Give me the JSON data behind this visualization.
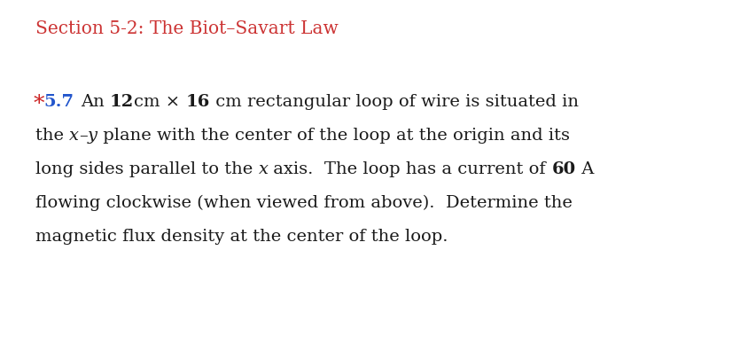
{
  "bg": "#ffffff",
  "section_title": "Section 5-2: The Biot–Savart Law",
  "section_color": "#cc3333",
  "section_fs": 14.5,
  "star_color": "#cc2222",
  "num_color": "#2255cc",
  "body_color": "#1a1a1a",
  "body_fs": 14.0,
  "line1_segs": [
    [
      "An ",
      false,
      false
    ],
    [
      "12",
      true,
      false
    ],
    [
      "cm × ",
      false,
      false
    ],
    [
      "16",
      true,
      false
    ],
    [
      " cm rectangular loop of wire is situated in",
      false,
      false
    ]
  ],
  "line2_segs": [
    [
      "the ",
      false,
      false
    ],
    [
      "x",
      false,
      true
    ],
    [
      "–",
      false,
      false
    ],
    [
      "y",
      false,
      true
    ],
    [
      " plane with the center of the loop at the origin and its",
      false,
      false
    ]
  ],
  "line3_segs": [
    [
      "long sides parallel to the ",
      false,
      false
    ],
    [
      "x",
      false,
      true
    ],
    [
      " axis.  The loop has a current of ",
      false,
      false
    ],
    [
      "60",
      true,
      false
    ],
    [
      " A",
      false,
      false
    ]
  ],
  "line4_segs": [
    [
      "flowing clockwise (when viewed from above).  Determine the",
      false,
      false
    ]
  ],
  "line5_segs": [
    [
      "magnetic flux density at the center of the loop.",
      false,
      false
    ]
  ]
}
